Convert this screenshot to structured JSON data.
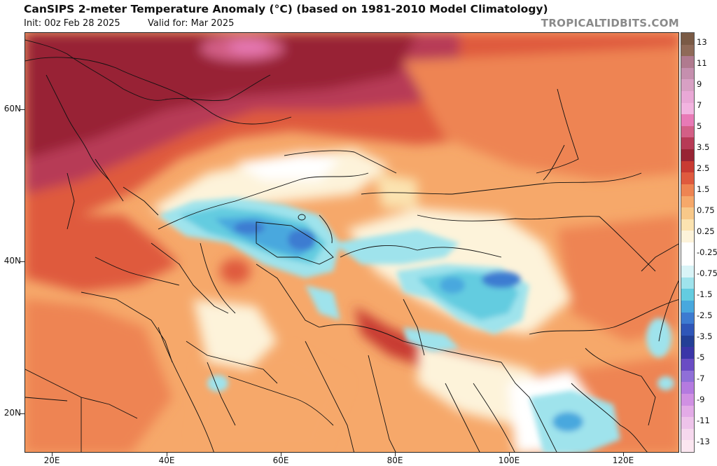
{
  "header": {
    "title": "CanSIPS 2-meter Temperature Anomaly (°C) (based on 1981-2010 Model Climatology)",
    "init": "Init: 00z Feb 28 2025",
    "valid": "Valid for: Mar 2025",
    "site": "TROPICALTIDBITS.COM"
  },
  "map": {
    "lat_labels": [
      "60N",
      "40N",
      "20N"
    ],
    "lon_labels": [
      "20E",
      "40E",
      "60E",
      "80E",
      "100E",
      "120E"
    ]
  },
  "colorbar": {
    "labels": [
      "13",
      "11",
      "9",
      "7",
      "5",
      "3.5",
      "2.5",
      "1.5",
      "0.75",
      "0.25",
      "-0.25",
      "-0.75",
      "-1.5",
      "-2.5",
      "-3.5",
      "-5",
      "-7",
      "-9",
      "-11",
      "-13"
    ],
    "colors": [
      "#7a5a45",
      "#8f6a58",
      "#b07a8f",
      "#c58fae",
      "#d8a0c4",
      "#e9a8d6",
      "#f2b4e0",
      "#e87ab6",
      "#d35f86",
      "#b73a56",
      "#982434",
      "#c83a32",
      "#df5a3e",
      "#ee8452",
      "#f6a86a",
      "#f8c889",
      "#fbe3b0",
      "#fdf3da",
      "#ffffff",
      "#ffffff",
      "#d9f4f7",
      "#9fe3ec",
      "#63cce0",
      "#48a8de",
      "#3d7bd1",
      "#2f56b8",
      "#233f96",
      "#3a35a8",
      "#6a4cc4",
      "#8f6fd8",
      "#b47ae0",
      "#d090e3",
      "#e3abe7",
      "#eec3ea",
      "#f6d8ee",
      "#fbe6f0"
    ]
  }
}
